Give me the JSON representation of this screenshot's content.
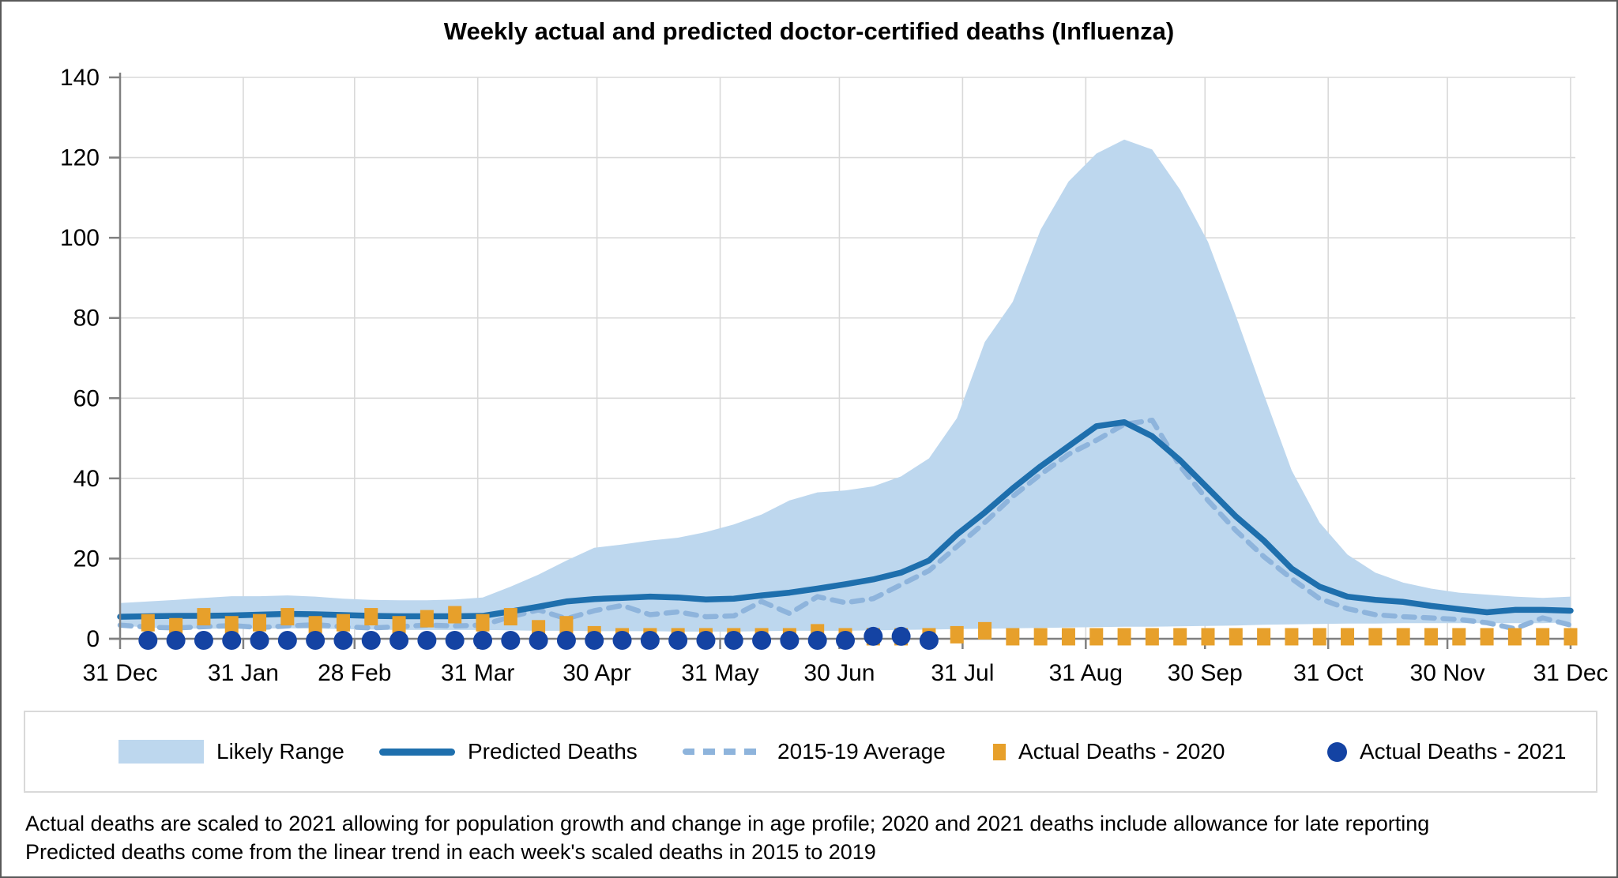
{
  "title": "Weekly actual and predicted doctor-certified deaths (Influenza)",
  "footnotes": [
    "Actual deaths are scaled to 2021 allowing for population growth and change in age profile; 2020 and 2021 deaths include allowance for late reporting",
    "Predicted deaths come from the linear trend in each week's scaled deaths in 2015 to 2019"
  ],
  "chart_data": {
    "type": "line",
    "title": "Weekly actual and predicted doctor-certified deaths (Influenza)",
    "xlabel": "",
    "ylabel": "",
    "ylim": [
      0,
      140
    ],
    "y_ticks": [
      0,
      20,
      40,
      60,
      80,
      100,
      120,
      140
    ],
    "x_tick_labels": [
      "31 Dec",
      "31 Jan",
      "28 Feb",
      "31 Mar",
      "30 Apr",
      "31 May",
      "30 Jun",
      "31 Jul",
      "31 Aug",
      "30 Sep",
      "31 Oct",
      "30 Nov",
      "31 Dec"
    ],
    "x_tick_days": [
      0,
      31,
      59,
      90,
      120,
      151,
      181,
      212,
      243,
      273,
      304,
      334,
      365
    ],
    "weeks": 52,
    "grid": true,
    "grid_color": "#d9d9d9",
    "axis_color": "#808080",
    "legend_position": "bottom",
    "series": [
      {
        "name": "Likely Range",
        "type": "band",
        "color": "#bdd7ee",
        "start_week": 0,
        "upper": [
          8.9,
          9.3,
          9.7,
          10.2,
          10.6,
          10.6,
          10.8,
          10.5,
          10,
          9.7,
          9.6,
          9.6,
          9.8,
          10.3,
          13,
          16,
          19.5,
          22.7,
          23.5,
          24.5,
          25.2,
          26.6,
          28.5,
          31,
          34.5,
          36.5,
          37,
          38,
          40.5,
          45,
          55,
          74,
          84,
          102,
          114,
          121,
          124.5,
          122,
          112,
          99,
          80.5,
          61,
          42,
          29,
          21,
          16.5,
          14,
          12.5,
          11.5,
          11,
          10.5,
          10.2,
          10.5
        ],
        "lower": [
          3.3,
          2.8,
          2.6,
          2.5,
          2.5,
          2.5,
          2.6,
          2.5,
          2.4,
          2.3,
          2.2,
          2.2,
          2.2,
          2.2,
          2.1,
          2,
          2,
          1.9,
          1.9,
          1.9,
          1.8,
          1.8,
          1.8,
          1.9,
          2,
          2,
          2,
          2.1,
          2.2,
          2.3,
          2.4,
          2.5,
          2.6,
          2.7,
          2.8,
          2.9,
          3,
          3,
          3.1,
          3.2,
          3.3,
          3.5,
          3.6,
          3.7,
          3.8,
          3.8,
          3.9,
          3.9,
          3.9,
          3.9,
          3.9,
          3.9,
          4.1
        ]
      },
      {
        "name": "Predicted Deaths",
        "type": "line",
        "color": "#1e6fad",
        "start_week": 0,
        "values": [
          5.5,
          5.6,
          5.7,
          5.7,
          5.8,
          6,
          6.2,
          6.1,
          5.9,
          5.7,
          5.6,
          5.6,
          5.6,
          5.7,
          6.8,
          8,
          9.3,
          9.9,
          10.2,
          10.5,
          10.3,
          9.8,
          10,
          10.8,
          11.5,
          12.5,
          13.6,
          14.8,
          16.5,
          19.5,
          26,
          31.5,
          37.5,
          43,
          48,
          53,
          54,
          50.5,
          44.5,
          37.5,
          30.5,
          24.5,
          17.5,
          13,
          10.5,
          9.7,
          9.2,
          8.2,
          7.4,
          6.6,
          7.2,
          7.2,
          7
        ]
      },
      {
        "name": "2015-19 Average",
        "type": "dashed-line",
        "color": "#8eb4dc",
        "start_week": 0,
        "values": [
          3.4,
          2.9,
          2.7,
          3,
          3.3,
          2.8,
          3.2,
          3.5,
          3,
          2.7,
          3,
          3.4,
          3.2,
          3.4,
          5.5,
          7.2,
          5,
          7,
          8.3,
          6,
          6.7,
          5.5,
          5.7,
          9.3,
          6.3,
          10.5,
          9,
          10,
          13.5,
          17,
          23,
          29,
          35.5,
          41,
          46,
          49.5,
          53.5,
          54.5,
          43,
          34.5,
          27,
          20.5,
          15,
          10,
          7.5,
          6,
          5.5,
          5.2,
          4.8,
          4,
          2.5,
          5.2,
          3.4
        ]
      },
      {
        "name": "Actual Deaths - 2020",
        "type": "square-points",
        "color": "#e7a02b",
        "start_week": 1,
        "values": [
          4,
          3,
          5.5,
          3.5,
          4,
          5.5,
          3.5,
          4,
          5.5,
          3.5,
          5,
          6,
          4,
          5.5,
          2.5,
          3.5,
          1,
          0.5,
          0.5,
          0.5,
          0.5,
          0.5,
          0.5,
          0.5,
          1.5,
          0.5,
          0.5,
          0.5,
          0.5,
          1,
          2,
          0.5,
          0.5,
          0.5,
          0.5,
          0.5,
          0.5,
          0.5,
          0.5,
          0.5,
          0.5,
          0.5,
          0.5,
          0.5,
          0.5,
          0.5,
          0.5,
          0.5,
          0.5,
          0.5,
          0.5,
          0.5
        ]
      },
      {
        "name": "Actual Deaths - 2021",
        "type": "circle-points",
        "color": "#1443a3",
        "start_week": 1,
        "values": [
          0,
          0,
          0,
          0,
          0,
          0,
          0,
          0,
          0,
          0,
          0,
          0,
          0,
          0,
          0,
          0,
          0,
          0,
          0,
          0,
          0,
          0,
          0,
          0,
          0,
          0,
          1,
          1,
          0
        ]
      }
    ]
  }
}
